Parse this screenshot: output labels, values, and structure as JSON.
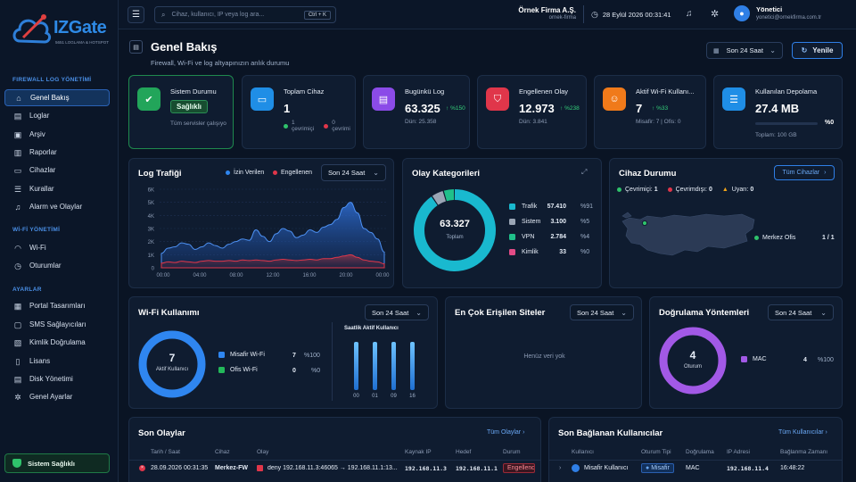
{
  "brand": {
    "name": "IZGate",
    "tagline": "5651 LOGLAMA & HOTSPOT"
  },
  "sidebar": {
    "sections": [
      "FIREWALL LOG YÖNETİMİ",
      "Wİ-Fİ YÖNETİMİ",
      "AYARLAR"
    ],
    "items": [
      "Genel Bakış",
      "Loglar",
      "Arşiv",
      "Raporlar",
      "Cihazlar",
      "Kurallar",
      "Alarm ve Olaylar",
      "Wi-Fi",
      "Oturumlar",
      "Portal Tasarımları",
      "SMS Sağlayıcıları",
      "Kimlik Doğrulama",
      "Lisans",
      "Disk Yönetimi",
      "Genel Ayarlar"
    ],
    "health": "Sistem Sağlıklı"
  },
  "topbar": {
    "search_placeholder": "Cihaz, kullanıcı, IP veya log ara...",
    "shortcut": "Ctrl + K",
    "company": "Örnek Firma A.Ş.",
    "company_sub": "ornek-firma",
    "datetime": "28 Eylül 2026 00:31:41",
    "user_name": "Yönetici",
    "user_email": "yonetici@ornekfirma.com.tr"
  },
  "page": {
    "title": "Genel Bakış",
    "subtitle": "Firewall, Wi-Fi ve log altyapınızın anlık durumu",
    "range": "Son 24 Saat",
    "refresh": "Yenile"
  },
  "stats": [
    {
      "title": "Sistem Durumu",
      "badge": "Sağlıklı",
      "sub": "Tüm servisler çalışıyo",
      "color": "#22a55a"
    },
    {
      "title": "Toplam Cihaz",
      "value": "1",
      "sub1": "1 çevrimiçi",
      "sub2": "0 çevrimi",
      "color": "#1f8ee6"
    },
    {
      "title": "Bugünkü Log",
      "value": "63.325",
      "delta": "%150",
      "sub": "Dün: 25.358",
      "color": "#8b4be8"
    },
    {
      "title": "Engellenen Olay",
      "value": "12.973",
      "delta": "%238",
      "sub": "Dün: 3.841",
      "color": "#e0364a"
    },
    {
      "title": "Aktif Wi-Fi Kullanı...",
      "value": "7",
      "delta": "%33",
      "sub": "Misafir: 7  |  Ofis: 0",
      "color": "#f07a1a"
    },
    {
      "title": "Kullanılan Depolama",
      "value": "27.4 MB",
      "pct": "%0",
      "pct_value": 0,
      "sub": "Toplam: 100 GB",
      "color": "#1f8ee6"
    }
  ],
  "log_traffic": {
    "title": "Log Trafiği",
    "legend_allowed": "İzin Verilen",
    "legend_blocked": "Engellenen",
    "range": "Son 24 Saat"
  },
  "categories": {
    "title": "Olay Kategorileri",
    "total": "63.327",
    "total_label": "Toplam",
    "items": [
      {
        "name": "Trafik",
        "value": "57.410",
        "pct": "%91",
        "color": "#19b9cf",
        "num": 57410
      },
      {
        "name": "Sistem",
        "value": "3.100",
        "pct": "%5",
        "color": "#9aa5b5",
        "num": 3100
      },
      {
        "name": "VPN",
        "value": "2.784",
        "pct": "%4",
        "color": "#1fc08a",
        "num": 2784
      },
      {
        "name": "Kimlik",
        "value": "33",
        "pct": "%0",
        "color": "#e24b86",
        "num": 33
      }
    ]
  },
  "device_status": {
    "title": "Cihaz Durumu",
    "all_button": "Tüm Cihazlar",
    "online_label": "Çevrimiçi:",
    "online": "1",
    "offline_label": "Çevrimdışı:",
    "offline": "0",
    "warn_label": "Uyarı:",
    "warn": "0",
    "location": "Merkez Ofis",
    "location_count": "1 / 1"
  },
  "wifi": {
    "title": "Wi-Fi Kullanımı",
    "range": "Son 24 Saat",
    "total": "7",
    "total_label": "Aktif Kullanıcı",
    "items": [
      {
        "name": "Misafir Wi-Fi",
        "value": "7",
        "pct": "%100",
        "color": "#2f86f0"
      },
      {
        "name": "Ofis Wi-Fi",
        "value": "0",
        "pct": "%0",
        "color": "#23b85a"
      }
    ],
    "hourly_title": "Saatlik Aktif Kullanıcı",
    "hourly_labels": [
      "00",
      "01",
      "09",
      "16"
    ]
  },
  "top_sites": {
    "title": "En Çok Erişilen Siteler",
    "range": "Son 24 Saat",
    "empty": "Henüz veri yok"
  },
  "auth": {
    "title": "Doğrulama Yöntemleri",
    "range": "Son 24 Saat",
    "total": "4",
    "total_label": "Oturum",
    "items": [
      {
        "name": "MAC",
        "value": "4",
        "pct": "%100",
        "color": "#a259e6"
      }
    ]
  },
  "events": {
    "title": "Son Olaylar",
    "link": "Tüm Olaylar",
    "headers": [
      "Tarih / Saat",
      "Cihaz",
      "Olay",
      "Kaynak IP",
      "Hedef",
      "Durum"
    ],
    "rows": [
      {
        "time": "28.09.2026 00:31:35",
        "device": "Merkez-FW",
        "event": "deny 192.168.11.3:46065 → 192.168.11.1:13...",
        "src": "192.168.11.3",
        "dst": "192.168.11.1",
        "status": "Engellendi"
      }
    ]
  },
  "recent_users": {
    "title": "Son Bağlanan Kullanıcılar",
    "link": "Tüm Kullanıcılar",
    "headers": [
      "Kullanıcı",
      "Oturum Tipi",
      "Doğrulama",
      "IP Adresi",
      "Bağlanma Zamanı"
    ],
    "rows": [
      {
        "user": "Misafir Kullanıcı",
        "type": "Misafir",
        "auth": "MAC",
        "ip": "192.168.11.4",
        "time": "16:48:22"
      }
    ]
  }
}
